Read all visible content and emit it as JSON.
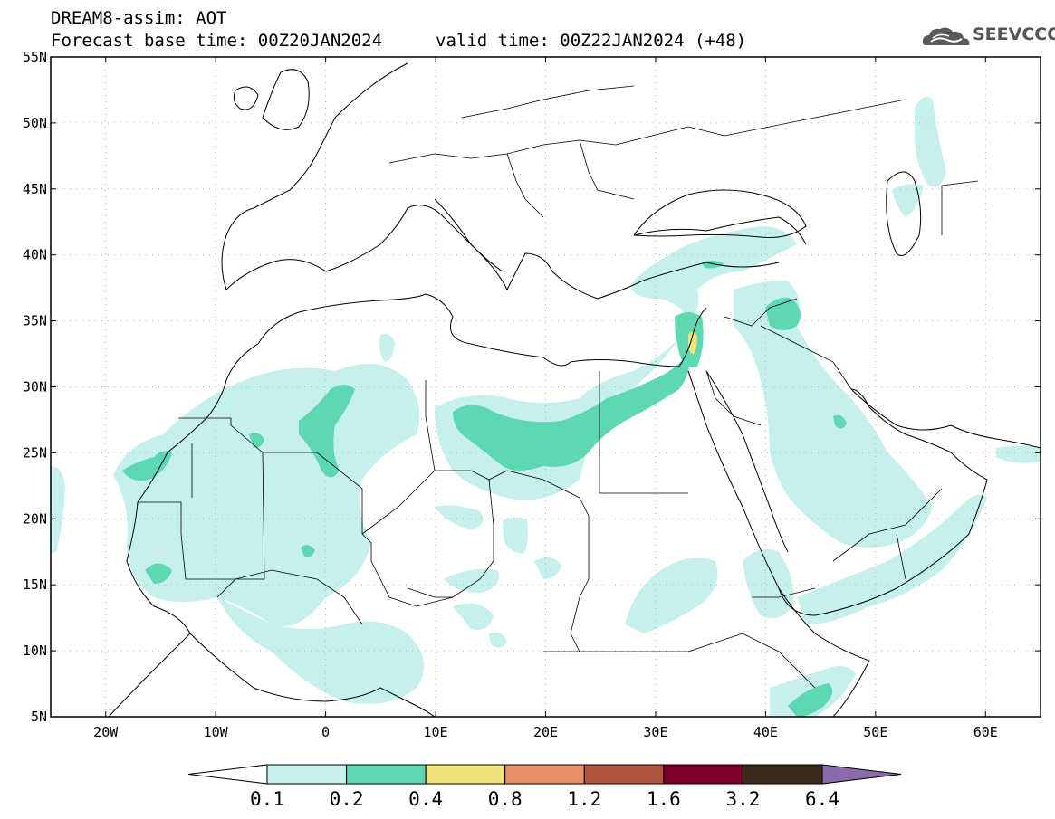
{
  "title": {
    "model": "DREAM8-assim: AOT",
    "base_time": "Forecast base time: 00Z20JAN2024",
    "valid_time": "valid time: 00Z22JAN2024 (+48)"
  },
  "logo": {
    "text": "SEEVCCC",
    "icon": "cloud-icon"
  },
  "map": {
    "lon_range": [
      -25,
      65
    ],
    "lat_range": [
      5,
      55
    ],
    "lat_ticks": [
      {
        "value": 55,
        "label": "55N"
      },
      {
        "value": 50,
        "label": "50N"
      },
      {
        "value": 45,
        "label": "45N"
      },
      {
        "value": 40,
        "label": "40N"
      },
      {
        "value": 35,
        "label": "35N"
      },
      {
        "value": 30,
        "label": "30N"
      },
      {
        "value": 25,
        "label": "25N"
      },
      {
        "value": 20,
        "label": "20N"
      },
      {
        "value": 15,
        "label": "15N"
      },
      {
        "value": 10,
        "label": "10N"
      },
      {
        "value": 5,
        "label": "5N"
      }
    ],
    "lon_ticks": [
      {
        "value": -20,
        "label": "20W"
      },
      {
        "value": -10,
        "label": "10W"
      },
      {
        "value": 0,
        "label": "0"
      },
      {
        "value": 10,
        "label": "10E"
      },
      {
        "value": 20,
        "label": "20E"
      },
      {
        "value": 30,
        "label": "30E"
      },
      {
        "value": 40,
        "label": "40E"
      },
      {
        "value": 50,
        "label": "50E"
      },
      {
        "value": 60,
        "label": "60E"
      }
    ],
    "grid": true
  },
  "colorbar": {
    "labels": [
      "0.1",
      "0.2",
      "0.4",
      "0.8",
      "1.2",
      "1.6",
      "3.2",
      "6.4"
    ],
    "colors": [
      "#ffffff",
      "#c6f0ec",
      "#5ed8b4",
      "#f2e47a",
      "#e8906a",
      "#b05440",
      "#7a0028",
      "#3a2a1a",
      "#8a6aa8"
    ]
  },
  "aot_colors": {
    "low": "#c6f0ec",
    "mid": "#5ed8b4",
    "high": "#f2e47a"
  }
}
